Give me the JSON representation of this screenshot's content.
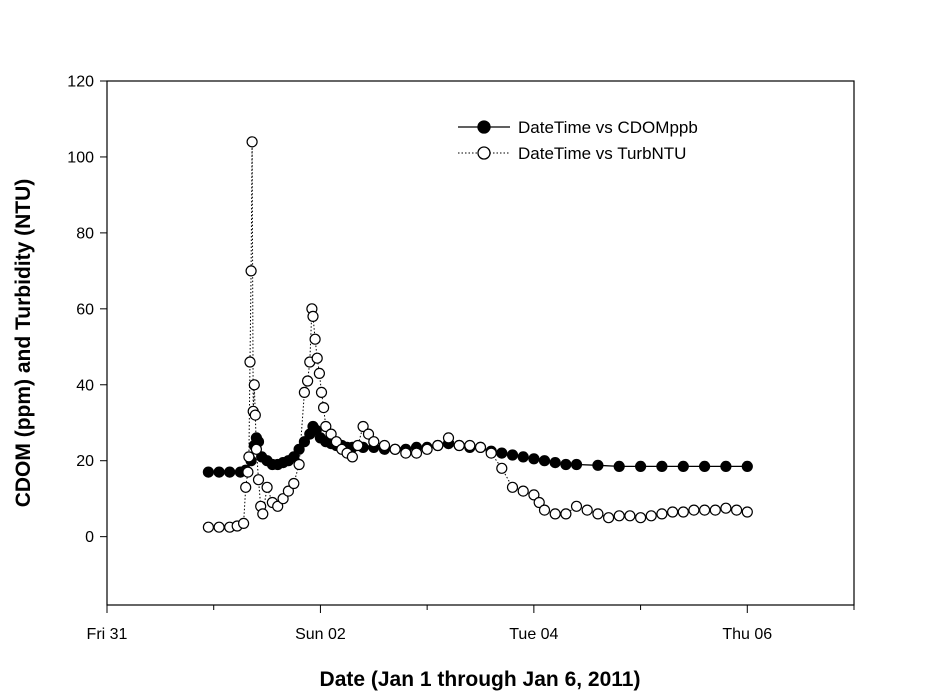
{
  "chart_data": {
    "type": "scatter",
    "title": "",
    "xlabel": "Date (Jan 1 through Jan 6, 2011)",
    "ylabel": "CDOM (ppm) and Turbidity (NTU)",
    "xlim": [
      -1,
      6
    ],
    "ylim": [
      -18,
      120
    ],
    "x_units": "days relative to Sun 02 00:00",
    "x_ticks": [
      {
        "value": -1,
        "label": "Fri 31"
      },
      {
        "value": 1,
        "label": "Sun 02"
      },
      {
        "value": 3,
        "label": "Tue 04"
      },
      {
        "value": 5,
        "label": "Thu 06"
      }
    ],
    "x_minor_ticks": [
      0,
      2,
      4,
      6
    ],
    "y_ticks": [
      0,
      20,
      40,
      60,
      80,
      100,
      120
    ],
    "legend_position": "top-right",
    "series": [
      {
        "name": "DateTime vs CDOMppb",
        "marker": "filled-circle",
        "line": "solid",
        "color": "#000000",
        "points": [
          [
            -0.05,
            17
          ],
          [
            0.05,
            17
          ],
          [
            0.15,
            17
          ],
          [
            0.25,
            17
          ],
          [
            0.3,
            17.5
          ],
          [
            0.35,
            20
          ],
          [
            0.38,
            24
          ],
          [
            0.4,
            26
          ],
          [
            0.42,
            25
          ],
          [
            0.45,
            21
          ],
          [
            0.5,
            20
          ],
          [
            0.55,
            19
          ],
          [
            0.6,
            19
          ],
          [
            0.65,
            19.5
          ],
          [
            0.7,
            20
          ],
          [
            0.75,
            21
          ],
          [
            0.8,
            23
          ],
          [
            0.85,
            25
          ],
          [
            0.9,
            27
          ],
          [
            0.93,
            29
          ],
          [
            0.96,
            28
          ],
          [
            1.0,
            26
          ],
          [
            1.05,
            25
          ],
          [
            1.1,
            24.5
          ],
          [
            1.15,
            24
          ],
          [
            1.2,
            24
          ],
          [
            1.25,
            23.5
          ],
          [
            1.3,
            23.5
          ],
          [
            1.4,
            23.5
          ],
          [
            1.5,
            23.5
          ],
          [
            1.6,
            23
          ],
          [
            1.7,
            23
          ],
          [
            1.8,
            23
          ],
          [
            1.9,
            23.5
          ],
          [
            2.0,
            23.5
          ],
          [
            2.1,
            24
          ],
          [
            2.2,
            24.5
          ],
          [
            2.3,
            24
          ],
          [
            2.4,
            23.5
          ],
          [
            2.5,
            23.5
          ],
          [
            2.6,
            22.5
          ],
          [
            2.7,
            22
          ],
          [
            2.8,
            21.5
          ],
          [
            2.9,
            21
          ],
          [
            3.0,
            20.5
          ],
          [
            3.1,
            20
          ],
          [
            3.2,
            19.5
          ],
          [
            3.3,
            19
          ],
          [
            3.4,
            19
          ],
          [
            3.6,
            18.8
          ],
          [
            3.8,
            18.5
          ],
          [
            4.0,
            18.5
          ],
          [
            4.2,
            18.5
          ],
          [
            4.4,
            18.5
          ],
          [
            4.6,
            18.5
          ],
          [
            4.8,
            18.5
          ],
          [
            5.0,
            18.5
          ]
        ]
      },
      {
        "name": "DateTime vs TurbNTU",
        "marker": "open-circle",
        "line": "dotted",
        "color": "#000000",
        "points": [
          [
            -0.05,
            2.5
          ],
          [
            0.05,
            2.5
          ],
          [
            0.15,
            2.5
          ],
          [
            0.22,
            2.8
          ],
          [
            0.28,
            3.5
          ],
          [
            0.3,
            13
          ],
          [
            0.32,
            17
          ],
          [
            0.33,
            21
          ],
          [
            0.34,
            46
          ],
          [
            0.35,
            70
          ],
          [
            0.36,
            104
          ],
          [
            0.37,
            33
          ],
          [
            0.38,
            40
          ],
          [
            0.39,
            32
          ],
          [
            0.4,
            23
          ],
          [
            0.42,
            15
          ],
          [
            0.44,
            8
          ],
          [
            0.46,
            6
          ],
          [
            0.5,
            13
          ],
          [
            0.55,
            9
          ],
          [
            0.6,
            8
          ],
          [
            0.65,
            10
          ],
          [
            0.7,
            12
          ],
          [
            0.75,
            14
          ],
          [
            0.8,
            19
          ],
          [
            0.85,
            38
          ],
          [
            0.88,
            41
          ],
          [
            0.9,
            46
          ],
          [
            0.92,
            60
          ],
          [
            0.93,
            58
          ],
          [
            0.95,
            52
          ],
          [
            0.97,
            47
          ],
          [
            0.99,
            43
          ],
          [
            1.01,
            38
          ],
          [
            1.03,
            34
          ],
          [
            1.05,
            29
          ],
          [
            1.1,
            27
          ],
          [
            1.15,
            25
          ],
          [
            1.2,
            23
          ],
          [
            1.25,
            22
          ],
          [
            1.3,
            21
          ],
          [
            1.35,
            24
          ],
          [
            1.4,
            29
          ],
          [
            1.45,
            27
          ],
          [
            1.5,
            25
          ],
          [
            1.6,
            24
          ],
          [
            1.7,
            23
          ],
          [
            1.8,
            22
          ],
          [
            1.9,
            22
          ],
          [
            2.0,
            23
          ],
          [
            2.1,
            24
          ],
          [
            2.2,
            26
          ],
          [
            2.3,
            24
          ],
          [
            2.4,
            24
          ],
          [
            2.5,
            23.5
          ],
          [
            2.6,
            22
          ],
          [
            2.7,
            18
          ],
          [
            2.8,
            13
          ],
          [
            2.9,
            12
          ],
          [
            3.0,
            11
          ],
          [
            3.05,
            9
          ],
          [
            3.1,
            7
          ],
          [
            3.2,
            6
          ],
          [
            3.3,
            6
          ],
          [
            3.4,
            8
          ],
          [
            3.5,
            7
          ],
          [
            3.6,
            6
          ],
          [
            3.7,
            5
          ],
          [
            3.8,
            5.5
          ],
          [
            3.9,
            5.5
          ],
          [
            4.0,
            5
          ],
          [
            4.1,
            5.5
          ],
          [
            4.2,
            6
          ],
          [
            4.3,
            6.5
          ],
          [
            4.4,
            6.5
          ],
          [
            4.5,
            7
          ],
          [
            4.6,
            7
          ],
          [
            4.7,
            7
          ],
          [
            4.8,
            7.5
          ],
          [
            4.9,
            7
          ],
          [
            5.0,
            6.5
          ]
        ]
      }
    ]
  }
}
